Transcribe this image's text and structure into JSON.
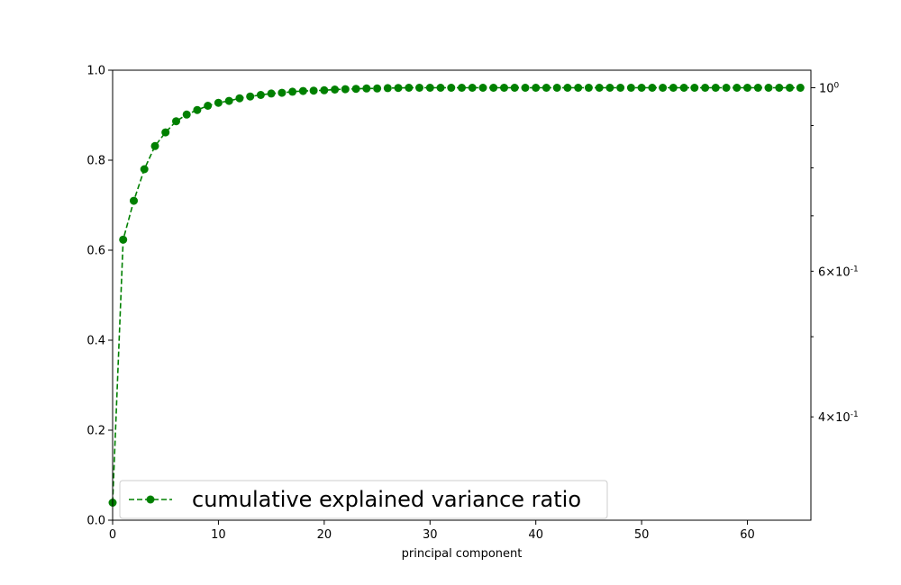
{
  "chart_data": {
    "type": "line",
    "xlabel": "principal component",
    "ylabel": "",
    "xlim": [
      0,
      66
    ],
    "ylim": [
      0,
      1.0
    ],
    "x_ticks": [
      0,
      10,
      20,
      30,
      40,
      50,
      60
    ],
    "y_ticks": [
      0.0,
      0.2,
      0.4,
      0.6,
      0.8,
      1.0
    ],
    "x_tick_labels": [
      "0",
      "10",
      "20",
      "30",
      "40",
      "50",
      "60"
    ],
    "y_tick_labels": [
      "0.0",
      "0.2",
      "0.4",
      "0.6",
      "0.8",
      "1.0"
    ],
    "secondary_y": {
      "scale": "log",
      "ylim": [
        0.3,
        1.05
      ],
      "major_ticks": [
        1.0
      ],
      "major_tick_labels": [
        "10^0"
      ],
      "minor_ticks": [
        0.4,
        0.5,
        0.6,
        0.7,
        0.8,
        0.9
      ],
      "minor_tick_labels": [
        "4×10^-1",
        "",
        "6×10^-1",
        "",
        "",
        ""
      ],
      "tick_label_color": "#008000"
    },
    "series": [
      {
        "name": "cumulative explained variance ratio",
        "axis": "secondary",
        "color": "#008000",
        "line_style": "dashed",
        "marker": "circle",
        "x": [
          0,
          1,
          2,
          3,
          4,
          5,
          6,
          7,
          8,
          9,
          10,
          11,
          12,
          13,
          14,
          15,
          16,
          17,
          18,
          19,
          20,
          21,
          22,
          23,
          24,
          25,
          26,
          27,
          28,
          29,
          30,
          31,
          32,
          33,
          34,
          35,
          36,
          37,
          38,
          39,
          40,
          41,
          42,
          43,
          44,
          45,
          46,
          47,
          48,
          49,
          50,
          51,
          52,
          53,
          54,
          55,
          56,
          57,
          58,
          59,
          60,
          61,
          62,
          63,
          64,
          65
        ],
        "values": [
          0.315,
          0.655,
          0.73,
          0.797,
          0.85,
          0.883,
          0.911,
          0.928,
          0.94,
          0.951,
          0.959,
          0.964,
          0.971,
          0.976,
          0.98,
          0.984,
          0.986,
          0.989,
          0.991,
          0.992,
          0.993,
          0.995,
          0.996,
          0.997,
          0.998,
          0.998,
          0.999,
          0.9995,
          1.0,
          1.0,
          1.0,
          1.0,
          1.0,
          1.0,
          1.0,
          1.0,
          1.0,
          1.0,
          1.0,
          1.0,
          1.0,
          1.0,
          1.0,
          1.0,
          1.0,
          1.0,
          1.0,
          1.0,
          1.0,
          1.0,
          1.0,
          1.0,
          1.0,
          1.0,
          1.0,
          1.0,
          1.0,
          1.0,
          1.0,
          1.0,
          1.0,
          1.0,
          1.0,
          1.0,
          1.0,
          1.0
        ]
      }
    ],
    "legend": {
      "placement": "lower-left",
      "entries": [
        "cumulative explained variance ratio"
      ]
    },
    "grid": false
  }
}
